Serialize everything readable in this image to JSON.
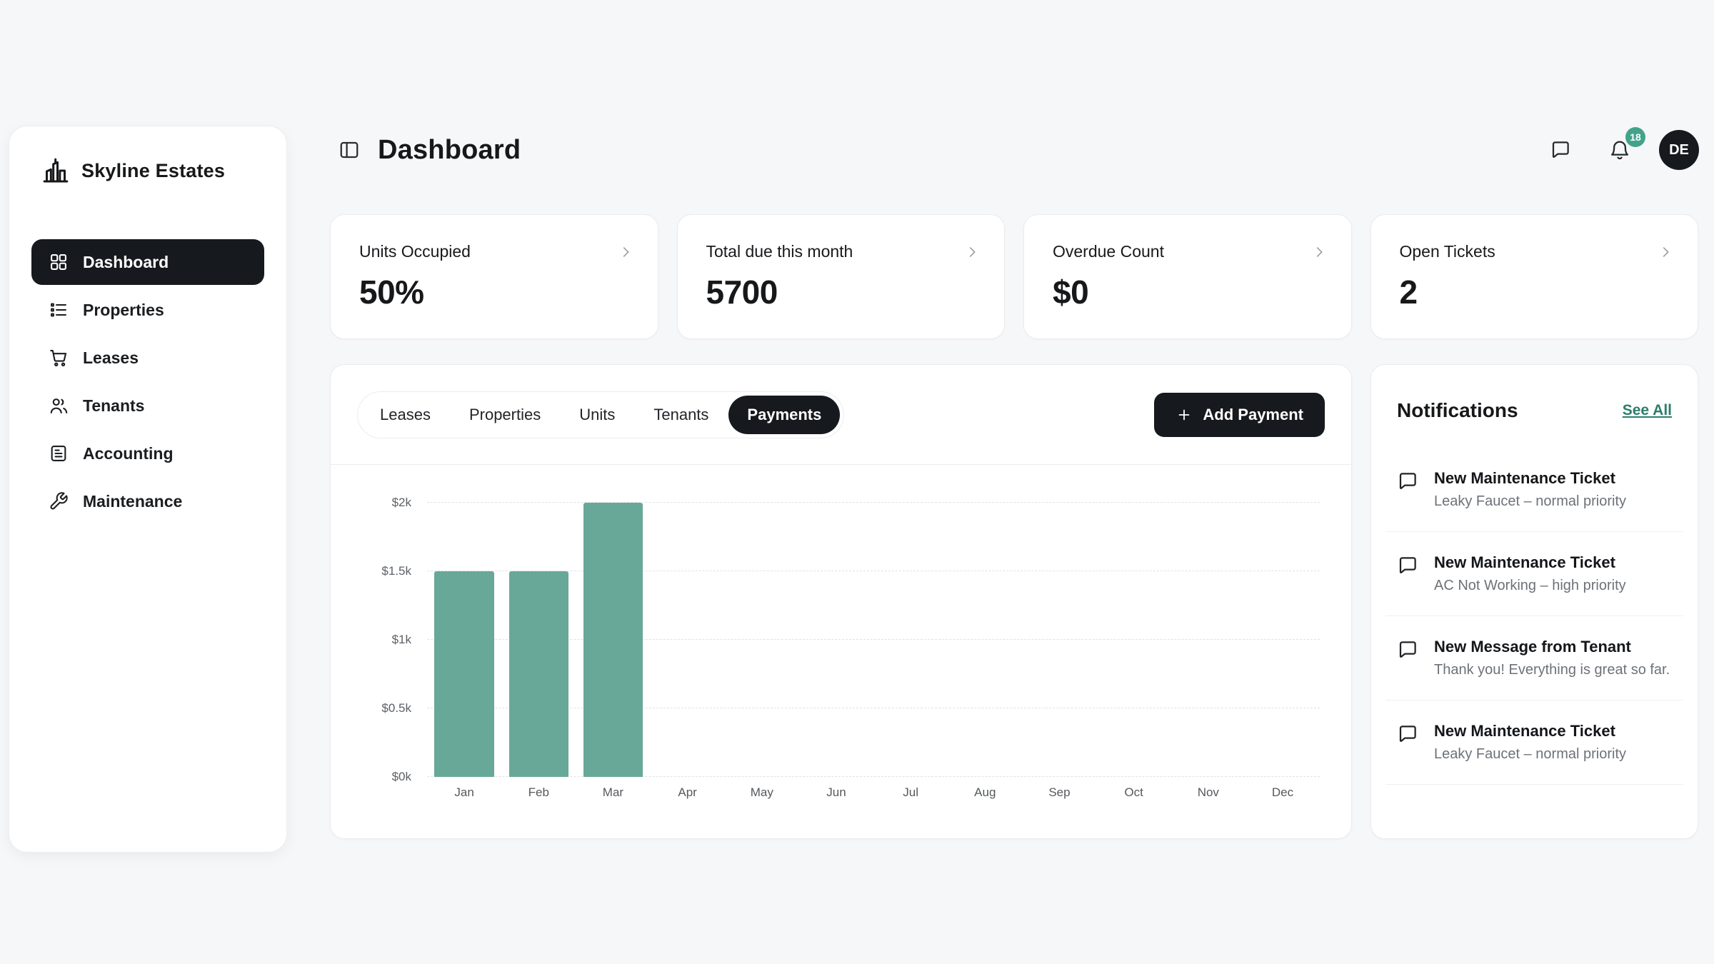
{
  "brand": {
    "name": "Skyline Estates"
  },
  "header": {
    "title": "Dashboard",
    "badge_count": "18",
    "avatar": "DE"
  },
  "sidebar": {
    "items": [
      {
        "label": "Dashboard",
        "icon": "grid",
        "active": true
      },
      {
        "label": "Properties",
        "icon": "list",
        "active": false
      },
      {
        "label": "Leases",
        "icon": "cart",
        "active": false
      },
      {
        "label": "Tenants",
        "icon": "users",
        "active": false
      },
      {
        "label": "Accounting",
        "icon": "invoice",
        "active": false
      },
      {
        "label": "Maintenance",
        "icon": "wrench",
        "active": false
      }
    ]
  },
  "stats": [
    {
      "label": "Units Occupied",
      "value": "50%"
    },
    {
      "label": "Total due this month",
      "value": "5700"
    },
    {
      "label": "Overdue Count",
      "value": "$0"
    },
    {
      "label": "Open Tickets",
      "value": "2"
    }
  ],
  "tabs": {
    "items": [
      {
        "label": "Leases",
        "active": false
      },
      {
        "label": "Properties",
        "active": false
      },
      {
        "label": "Units",
        "active": false
      },
      {
        "label": "Tenants",
        "active": false
      },
      {
        "label": "Payments",
        "active": true
      }
    ],
    "action": "Add Payment"
  },
  "chart_data": {
    "type": "bar",
    "title": "",
    "xlabel": "",
    "ylabel": "",
    "categories": [
      "Jan",
      "Feb",
      "Mar",
      "Apr",
      "May",
      "Jun",
      "Jul",
      "Aug",
      "Sep",
      "Oct",
      "Nov",
      "Dec"
    ],
    "values": [
      1500,
      1500,
      2000,
      0,
      0,
      0,
      0,
      0,
      0,
      0,
      0,
      0
    ],
    "ylim": [
      0,
      2000
    ],
    "yticks": [
      "$0k",
      "$0.5k",
      "$1k",
      "$1.5k",
      "$2k"
    ],
    "tick_values": [
      0,
      500,
      1000,
      1500,
      2000
    ],
    "grid": "dashed-horizontal",
    "legend": "none",
    "bar_color": "#68a898"
  },
  "notifications": {
    "title": "Notifications",
    "see_all": "See All",
    "items": [
      {
        "title": "New Maintenance Ticket",
        "desc": "Leaky Faucet – normal priority"
      },
      {
        "title": "New Maintenance Ticket",
        "desc": "AC Not Working – high priority"
      },
      {
        "title": "New Message from Tenant",
        "desc": "Thank you! Everything is great so far."
      },
      {
        "title": "New Maintenance Ticket",
        "desc": "Leaky Faucet – normal priority"
      }
    ]
  },
  "colors": {
    "background": "#f6f7f8",
    "dark": "#16191d",
    "bar_teal": "#68a898",
    "link_teal": "#2c7d6c",
    "badge_teal": "#43a38a"
  }
}
